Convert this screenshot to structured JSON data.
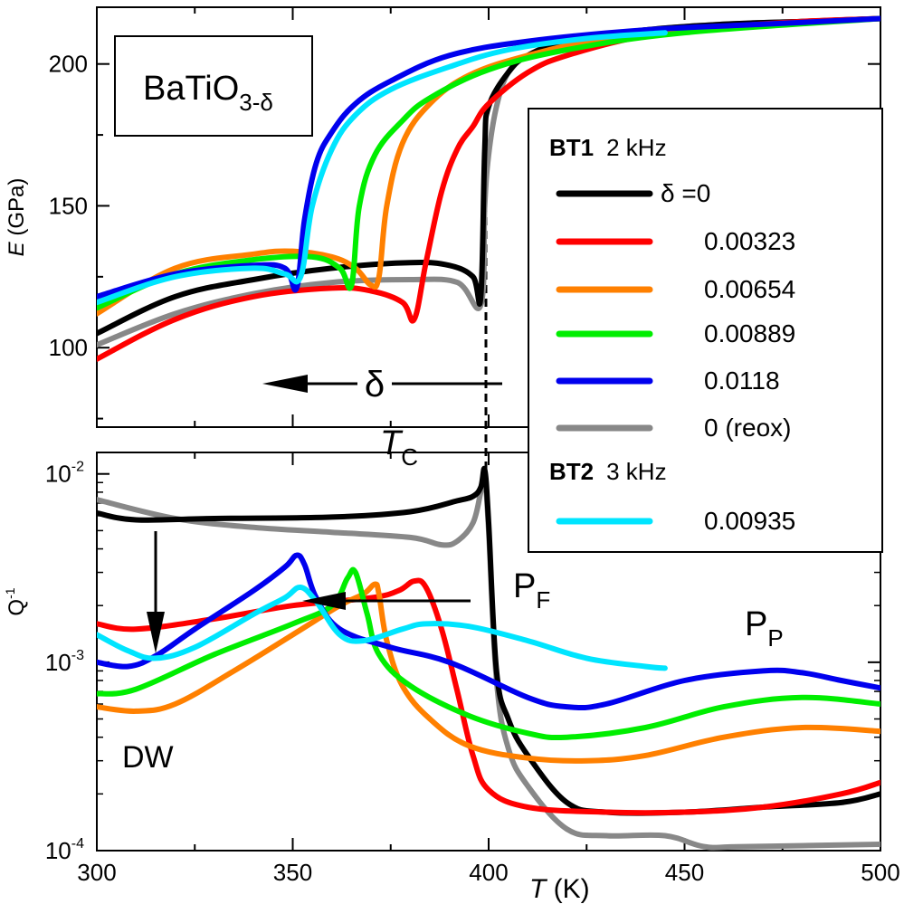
{
  "chart_data": [
    {
      "id": "modulus",
      "type": "line",
      "ylabel_italic": "E",
      "ylabel_rest": " (GPa)",
      "xlim": [
        300,
        500
      ],
      "ylim": [
        72,
        220
      ],
      "yticks": [
        100,
        150,
        200
      ],
      "compound": {
        "base": "BaTiO",
        "sub": "3-δ"
      },
      "arrow_label": "δ",
      "tc_label": {
        "main": "T",
        "sub": "C"
      },
      "series": [
        {
          "id": "s0",
          "color": "#000000",
          "x": [
            300,
            320,
            340,
            360,
            380,
            390,
            396,
            398,
            399,
            400,
            405,
            410,
            420,
            440,
            460,
            480,
            500
          ],
          "y": [
            105,
            118,
            124,
            128,
            130,
            129,
            125,
            118,
            170,
            185,
            197,
            203,
            208,
            212,
            214,
            215,
            216
          ]
        },
        {
          "id": "s1",
          "color": "#ff0000",
          "x": [
            300,
            320,
            340,
            360,
            370,
            378,
            381,
            384,
            388,
            392,
            396,
            400,
            410,
            420,
            440,
            460,
            480,
            500
          ],
          "y": [
            96,
            110,
            118,
            121,
            120,
            116,
            110,
            130,
            155,
            170,
            178,
            186,
            197,
            203,
            210,
            213,
            215,
            216
          ]
        },
        {
          "id": "s2",
          "color": "#ff8000",
          "x": [
            300,
            320,
            340,
            350,
            360,
            366,
            370,
            372,
            374,
            378,
            385,
            395,
            410,
            430,
            460,
            500
          ],
          "y": [
            112,
            128,
            133,
            134,
            132,
            128,
            122,
            125,
            150,
            172,
            186,
            196,
            203,
            209,
            213,
            216
          ]
        },
        {
          "id": "s3",
          "color": "#00ee00",
          "x": [
            300,
            320,
            340,
            355,
            362,
            365,
            367,
            371,
            378,
            385,
            400,
            420,
            450,
            500
          ],
          "y": [
            114,
            126,
            131,
            132,
            128,
            122,
            150,
            168,
            180,
            188,
            198,
            205,
            211,
            216
          ]
        },
        {
          "id": "s4",
          "color": "#0000ee",
          "x": [
            300,
            320,
            340,
            348,
            351,
            353,
            356,
            360,
            366,
            375,
            390,
            410,
            440,
            470,
            500
          ],
          "y": [
            118,
            126,
            129,
            128,
            121,
            145,
            165,
            176,
            186,
            194,
            203,
            208,
            212,
            214,
            216
          ]
        },
        {
          "id": "s5",
          "color": "#888888",
          "x": [
            300,
            320,
            340,
            360,
            380,
            392,
            398,
            399,
            400,
            402,
            405,
            410,
            420,
            440,
            460,
            480,
            500
          ],
          "y": [
            101,
            112,
            119,
            123,
            124,
            123,
            115,
            150,
            168,
            185,
            197,
            203,
            208,
            212,
            214,
            215,
            216
          ]
        },
        {
          "id": "s6",
          "color": "#00e5ff",
          "x": [
            300,
            320,
            340,
            348,
            352,
            355,
            360,
            366,
            375,
            390,
            405,
            425,
            445
          ],
          "y": [
            116,
            125,
            128,
            126,
            125,
            150,
            170,
            182,
            191,
            199,
            205,
            209,
            211
          ]
        }
      ]
    },
    {
      "id": "loss",
      "type": "line",
      "ylabel_main": "Q",
      "ylabel_sup": "-1",
      "xlabel_italic": "T",
      "xlabel_rest": " (K)",
      "log_y": true,
      "xlim": [
        300,
        500
      ],
      "ylim": [
        0.0001,
        0.013
      ],
      "xticks": [
        300,
        350,
        400,
        450,
        500
      ],
      "yticks": [
        {
          "value": 0.01,
          "base": "10",
          "exp": "-2"
        },
        {
          "value": 0.001,
          "base": "10",
          "exp": "-3"
        },
        {
          "value": 0.0001,
          "base": "10",
          "exp": "-4"
        }
      ],
      "labels": {
        "pf": {
          "main": "P",
          "sub": "F"
        },
        "pp": {
          "main": "P",
          "sub": "P"
        },
        "dw": "DW"
      },
      "series": [
        {
          "id": "s0",
          "color": "#000000",
          "x": [
            300,
            310,
            330,
            360,
            380,
            392,
            396,
            398,
            399,
            400,
            402,
            405,
            410,
            420,
            430,
            450,
            470,
            490,
            500
          ],
          "y": [
            0.0062,
            0.0057,
            0.0058,
            0.0059,
            0.0063,
            0.0072,
            0.0076,
            0.0085,
            0.0105,
            0.0055,
            0.0009,
            0.0005,
            0.00032,
            0.00018,
            0.00016,
            0.00016,
            0.00017,
            0.00018,
            0.0002
          ]
        },
        {
          "id": "s1",
          "color": "#ff0000",
          "x": [
            300,
            310,
            330,
            350,
            370,
            377,
            381,
            384,
            388,
            392,
            396,
            400,
            410,
            430,
            450,
            470,
            490,
            500
          ],
          "y": [
            0.0016,
            0.0015,
            0.0017,
            0.002,
            0.0022,
            0.0024,
            0.0027,
            0.0025,
            0.0015,
            0.0007,
            0.00032,
            0.00021,
            0.00017,
            0.00016,
            0.00016,
            0.00017,
            0.0002,
            0.00023
          ]
        },
        {
          "id": "s2",
          "color": "#ff8000",
          "x": [
            300,
            310,
            320,
            335,
            350,
            362,
            368,
            371,
            372,
            374,
            378,
            385,
            395,
            410,
            425,
            440,
            460,
            480,
            500
          ],
          "y": [
            0.00058,
            0.00055,
            0.0006,
            0.0009,
            0.0014,
            0.002,
            0.0023,
            0.0026,
            0.0023,
            0.0013,
            0.00075,
            0.0005,
            0.00036,
            0.00031,
            0.0003,
            0.00032,
            0.0004,
            0.00045,
            0.00043
          ]
        },
        {
          "id": "s3",
          "color": "#00ee00",
          "x": [
            300,
            310,
            330,
            350,
            360,
            364,
            366,
            369,
            372,
            380,
            395,
            410,
            420,
            440,
            460,
            480,
            500
          ],
          "y": [
            0.00068,
            0.00072,
            0.0011,
            0.0016,
            0.002,
            0.0028,
            0.003,
            0.0018,
            0.0011,
            0.00075,
            0.00052,
            0.00042,
            0.0004,
            0.00045,
            0.00058,
            0.00065,
            0.0006
          ]
        },
        {
          "id": "s4",
          "color": "#0000ee",
          "x": [
            300,
            308,
            315,
            325,
            340,
            348,
            351,
            353,
            356,
            362,
            375,
            390,
            410,
            420,
            430,
            450,
            470,
            480,
            490,
            500
          ],
          "y": [
            0.001,
            0.00095,
            0.00108,
            0.0015,
            0.0024,
            0.0032,
            0.0037,
            0.0033,
            0.0022,
            0.0015,
            0.0012,
            0.001,
            0.00065,
            0.00058,
            0.0006,
            0.0008,
            0.0009,
            0.00088,
            0.0008,
            0.00073
          ]
        },
        {
          "id": "s5",
          "color": "#888888",
          "x": [
            300,
            320,
            340,
            360,
            380,
            388,
            392,
            396,
            398,
            399,
            400,
            402,
            405,
            410,
            420,
            430,
            445,
            455,
            465,
            500
          ],
          "y": [
            0.0073,
            0.0058,
            0.0052,
            0.0049,
            0.0046,
            0.0042,
            0.0044,
            0.0055,
            0.008,
            0.0095,
            0.005,
            0.0008,
            0.00035,
            0.00022,
            0.00013,
            0.00012,
            0.00012,
            0.000105,
            0.000105,
            0.000108
          ]
        },
        {
          "id": "s6",
          "color": "#00e5ff",
          "x": [
            300,
            308,
            315,
            325,
            340,
            348,
            352,
            356,
            362,
            368,
            378,
            384,
            395,
            410,
            425,
            440,
            445
          ],
          "y": [
            0.0014,
            0.00115,
            0.00105,
            0.0012,
            0.0018,
            0.0022,
            0.0025,
            0.0021,
            0.0014,
            0.0013,
            0.0015,
            0.0016,
            0.00155,
            0.0013,
            0.00105,
            0.00095,
            0.00093
          ]
        }
      ]
    }
  ],
  "legend": {
    "placement": "right",
    "group1": {
      "name": "BT1",
      "freq": "2 kHz"
    },
    "group2": {
      "name": "BT2",
      "freq": "3 kHz"
    },
    "entries": [
      {
        "series": "s0",
        "label": "δ =0",
        "group": 1
      },
      {
        "series": "s1",
        "label": "0.00323",
        "group": 1
      },
      {
        "series": "s2",
        "label": "0.00654",
        "group": 1
      },
      {
        "series": "s3",
        "label": "0.00889",
        "group": 1
      },
      {
        "series": "s4",
        "label": "0.0118",
        "group": 1
      },
      {
        "series": "s5",
        "label": "0 (reox)",
        "group": 1
      },
      {
        "series": "s6",
        "label": "0.00935",
        "group": 2
      }
    ]
  }
}
